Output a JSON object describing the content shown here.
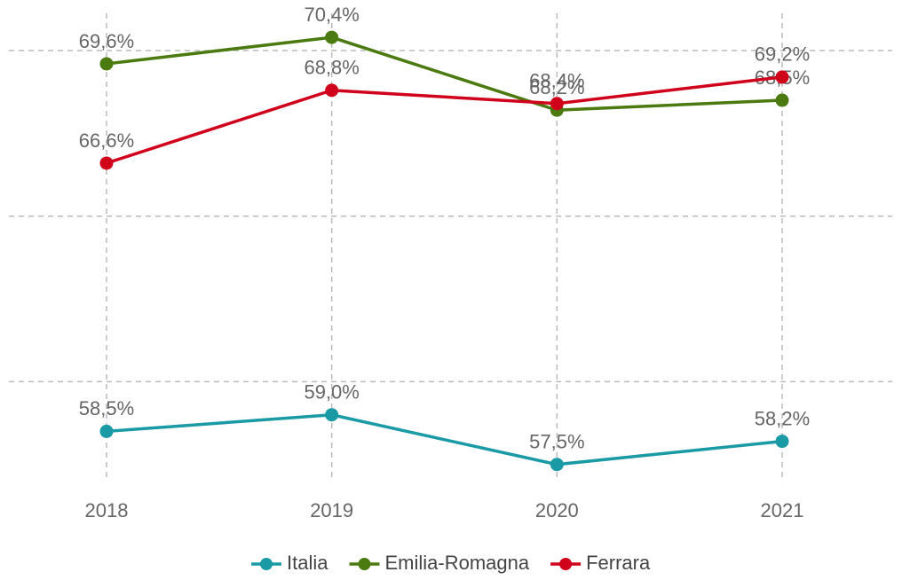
{
  "chart_data": {
    "type": "line",
    "x": [
      "2018",
      "2019",
      "2020",
      "2021"
    ],
    "series": [
      {
        "name": "Italia",
        "color": "#1a9aa5",
        "values": [
          58.5,
          59.0,
          57.5,
          58.2
        ],
        "value_labels": [
          "58,5%",
          "59,0%",
          "57,5%",
          "58,2%"
        ]
      },
      {
        "name": "Emilia-Romagna",
        "color": "#4b7a10",
        "values": [
          69.6,
          70.4,
          68.2,
          68.5
        ],
        "value_labels": [
          "69,6%",
          "70,4%",
          "68,2%",
          "68,5%"
        ]
      },
      {
        "name": "Ferrara",
        "color": "#d0021b",
        "values": [
          66.6,
          68.8,
          68.4,
          69.2
        ],
        "value_labels": [
          "66,6%",
          "68,8%",
          "68,4%",
          "69,2%"
        ]
      }
    ],
    "ylim": [
      57,
      71
    ],
    "yticks": [
      60,
      65,
      70
    ],
    "grid": true,
    "legend": "bottom"
  }
}
